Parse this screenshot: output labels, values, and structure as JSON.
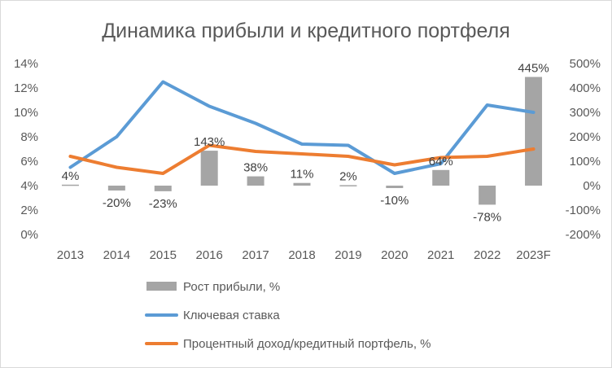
{
  "chart_data": {
    "type": "bar+line",
    "title": "Динамика прибыли и кредитного портфеля",
    "categories": [
      "2013",
      "2014",
      "2015",
      "2016",
      "2017",
      "2018",
      "2019",
      "2020",
      "2021",
      "2022",
      "2023F"
    ],
    "left_axis": {
      "range": [
        0,
        14
      ],
      "tick_values": [
        0,
        2,
        4,
        6,
        8,
        10,
        12,
        14
      ],
      "tick_labels": [
        "0%",
        "2%",
        "4%",
        "6%",
        "8%",
        "10%",
        "12%",
        "14%"
      ]
    },
    "right_axis": {
      "range": [
        -200,
        500
      ],
      "tick_values": [
        -200,
        -100,
        0,
        100,
        200,
        300,
        400,
        500
      ],
      "tick_labels": [
        "-200%",
        "-100%",
        "0%",
        "100%",
        "200%",
        "300%",
        "400%",
        "500%"
      ]
    },
    "series": [
      {
        "name": "Рост прибыли, %",
        "type": "bar",
        "axis": "right",
        "color": "#a5a5a5",
        "values": [
          4,
          -20,
          -23,
          143,
          38,
          11,
          2,
          -10,
          64,
          -78,
          445
        ],
        "data_labels": [
          "4%",
          "-20%",
          "-23%",
          "143%",
          "38%",
          "11%",
          "2%",
          "-10%",
          "64%",
          "-78%",
          "445%"
        ]
      },
      {
        "name": "Ключевая ставка",
        "type": "line",
        "axis": "left",
        "color": "#5b9bd5",
        "values": [
          5.5,
          8.0,
          12.5,
          10.5,
          9.1,
          7.4,
          7.3,
          5.0,
          5.8,
          10.6,
          10.0
        ]
      },
      {
        "name": "Процентный доход/кредитный портфель, %",
        "type": "line",
        "axis": "left",
        "color": "#ed7d31",
        "values": [
          6.4,
          5.5,
          5.0,
          7.3,
          6.8,
          6.6,
          6.4,
          5.7,
          6.3,
          6.4,
          7.0
        ]
      }
    ],
    "legend_position": "bottom",
    "grid": false
  }
}
